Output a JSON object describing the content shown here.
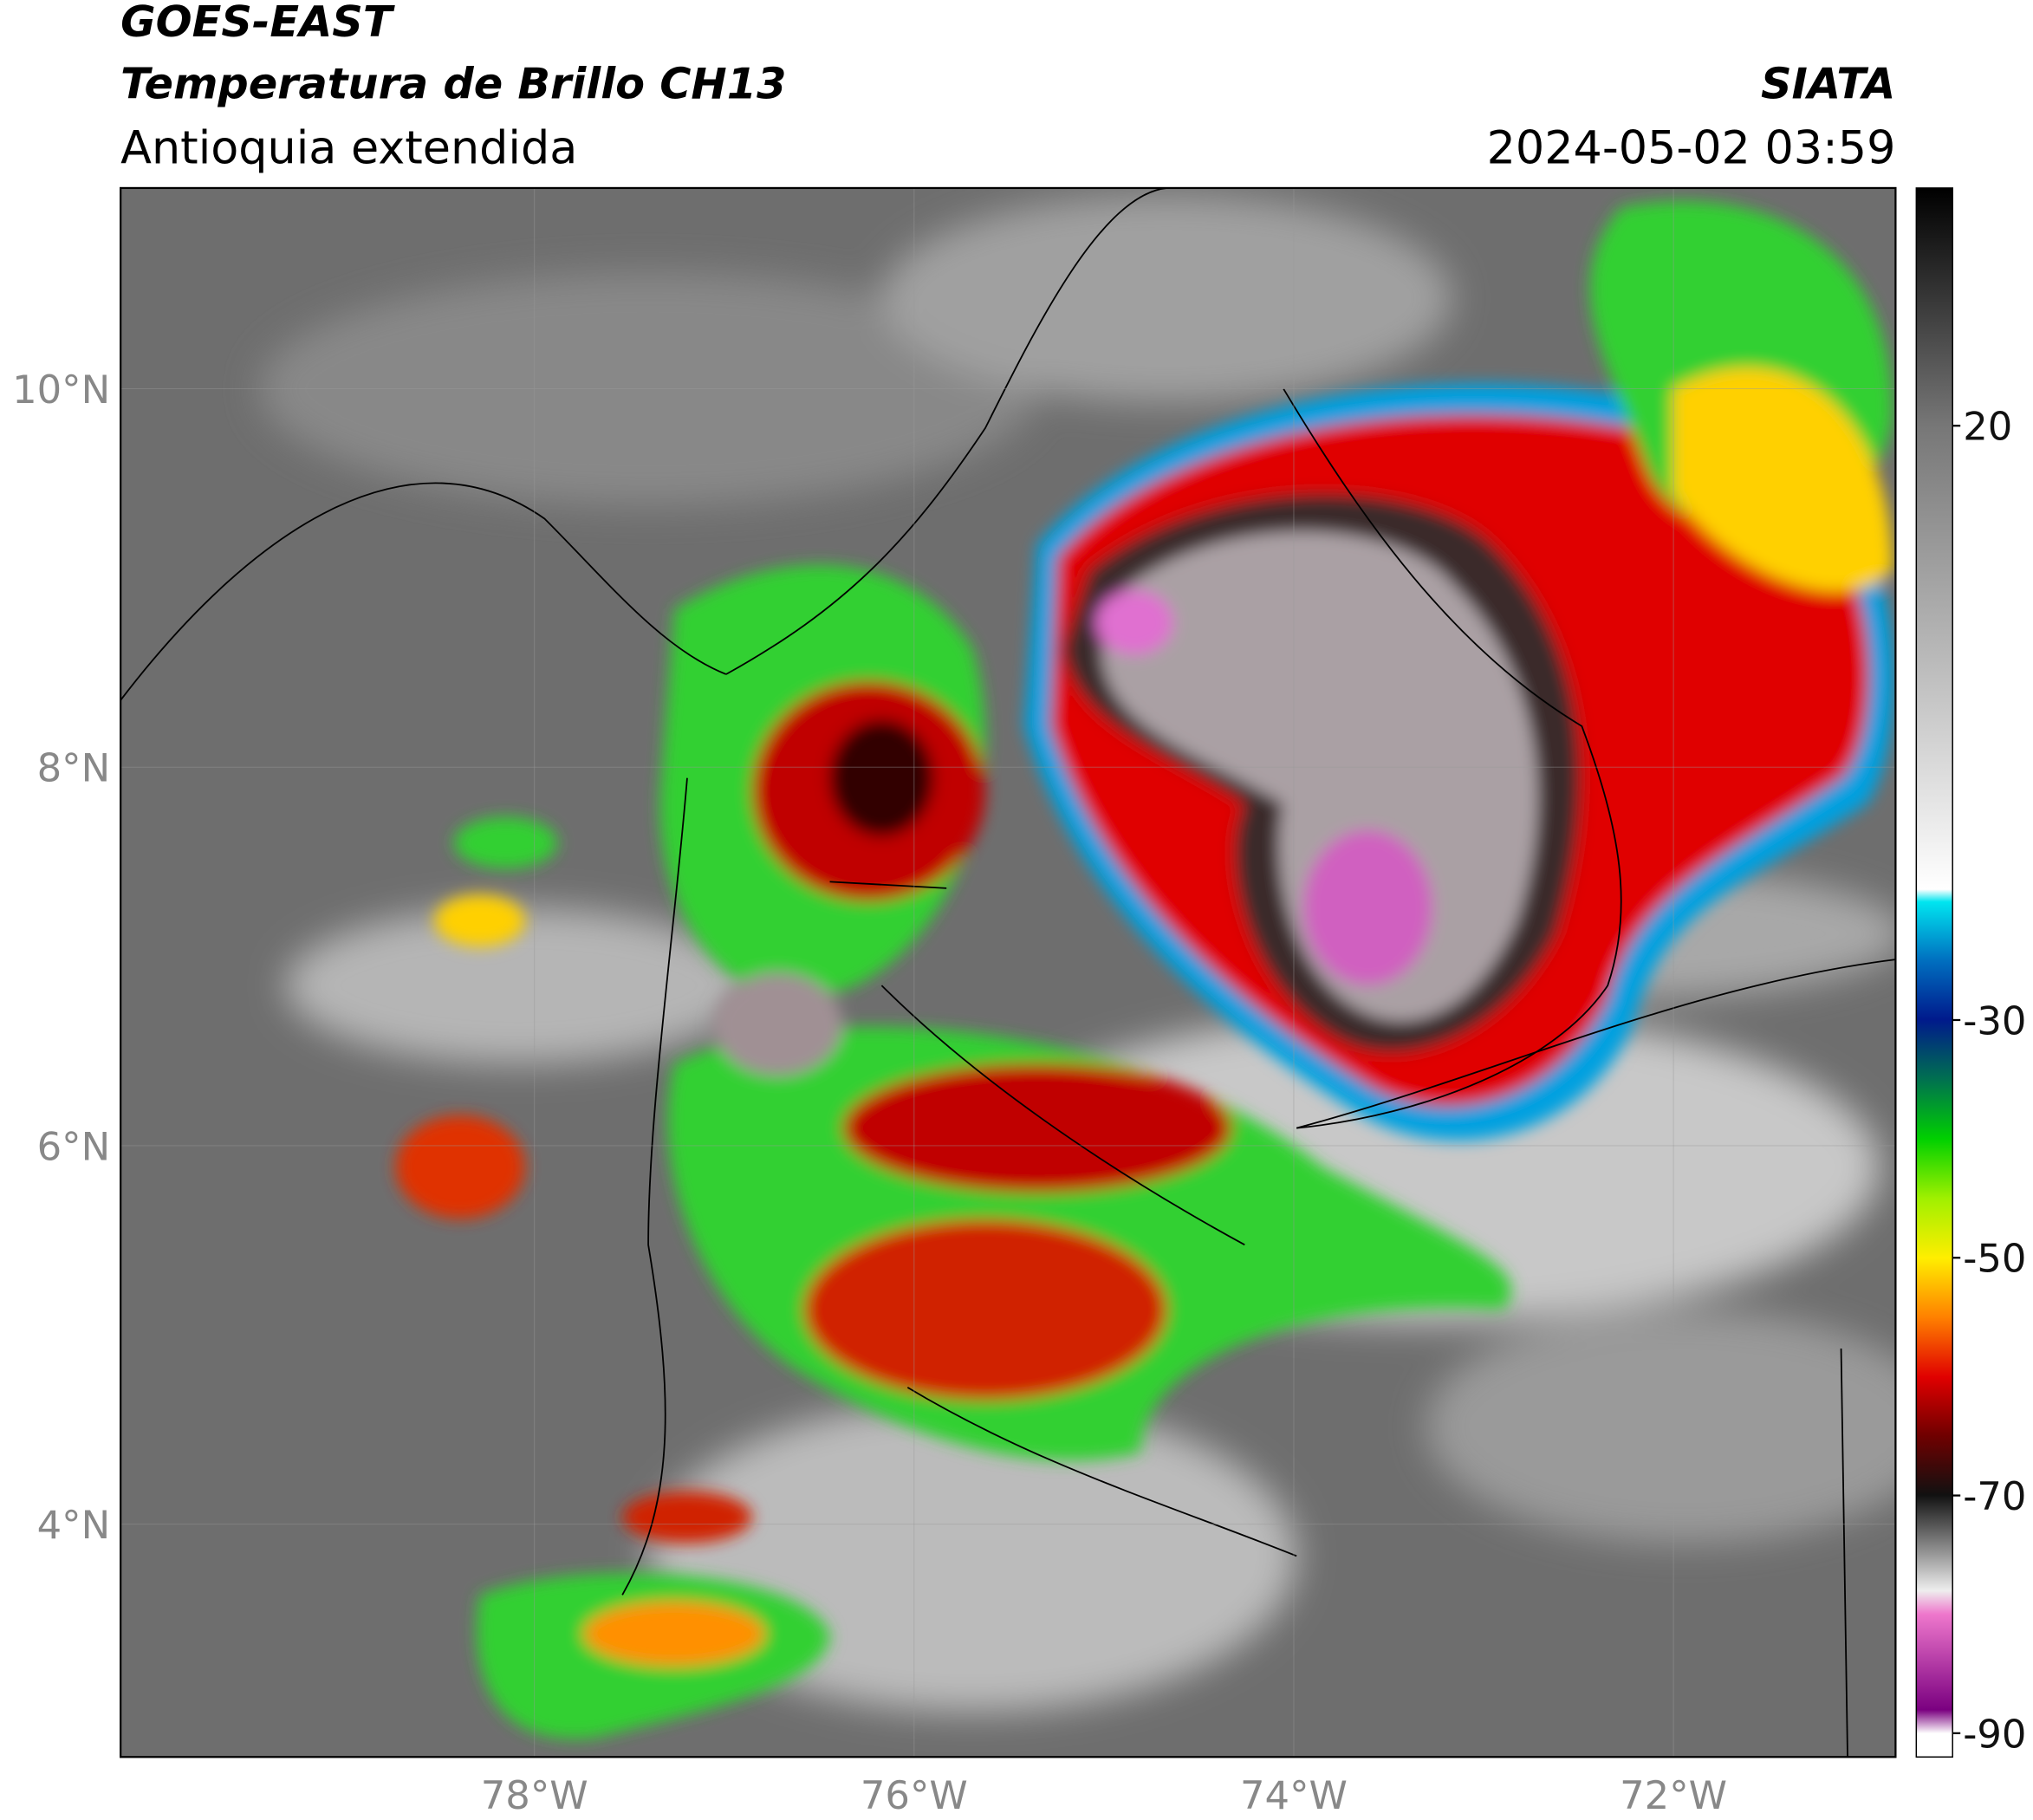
{
  "header": {
    "title": "GOES-EAST",
    "subtitle": "Temperatura de Brillo CH13",
    "region": "Antioquia extendida",
    "source": "SIATA",
    "datetime": "2024-05-02 03:59"
  },
  "map": {
    "xlim": [
      -80.18,
      -70.83
    ],
    "ylim": [
      2.77,
      11.06
    ],
    "xticks": [
      {
        "value": -78,
        "label": "78°W"
      },
      {
        "value": -76,
        "label": "76°W"
      },
      {
        "value": -74,
        "label": "74°W"
      },
      {
        "value": -72,
        "label": "72°W"
      }
    ],
    "yticks": [
      {
        "value": 10,
        "label": "10°N"
      },
      {
        "value": 8,
        "label": "8°N"
      },
      {
        "value": 6,
        "label": "6°N"
      },
      {
        "value": 4,
        "label": "4°N"
      }
    ]
  },
  "colorbar": {
    "lim": [
      -92,
      40
    ],
    "ticks": [
      20,
      -30,
      -50,
      -70,
      -90
    ]
  }
}
